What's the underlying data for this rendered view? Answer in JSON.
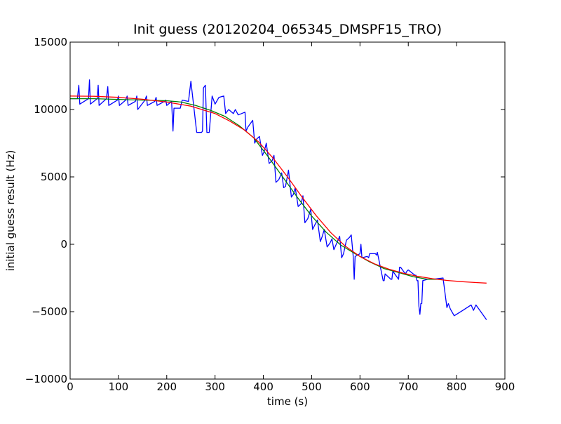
{
  "chart_data": {
    "type": "line",
    "title": "Init guess (20120204_065345_DMSPF15_TRO)",
    "xlabel": "time (s)",
    "ylabel": "initial guess result (Hz)",
    "xlim": [
      0,
      900
    ],
    "ylim": [
      -10000,
      15000
    ],
    "xticks": [
      0,
      100,
      200,
      300,
      400,
      500,
      600,
      700,
      800,
      900
    ],
    "yticks": [
      -10000,
      -5000,
      0,
      5000,
      10000,
      15000
    ],
    "xtick_labels": [
      "0",
      "100",
      "200",
      "300",
      "400",
      "500",
      "600",
      "700",
      "800",
      "900"
    ],
    "ytick_labels": [
      "−10000",
      "−5000",
      "0",
      "5000",
      "10000",
      "15000"
    ],
    "grid": false,
    "legend": "none",
    "series": [
      {
        "color": "#0000ff",
        "x": [
          0,
          15,
          18,
          20,
          38,
          40,
          42,
          56,
          58,
          60,
          75,
          78,
          80,
          98,
          100,
          102,
          115,
          118,
          120,
          135,
          138,
          140,
          155,
          158,
          160,
          175,
          178,
          180,
          195,
          198,
          200,
          210,
          213,
          215,
          228,
          232,
          245,
          250,
          262,
          265,
          272,
          274,
          276,
          280,
          283,
          286,
          288,
          294,
          300,
          308,
          318,
          322,
          328,
          338,
          342,
          348,
          362,
          364,
          368,
          378,
          382,
          386,
          392,
          398,
          402,
          406,
          412,
          418,
          422,
          426,
          432,
          438,
          442,
          446,
          452,
          458,
          462,
          466,
          472,
          478,
          482,
          486,
          492,
          498,
          502,
          506,
          512,
          518,
          522,
          526,
          532,
          538,
          542,
          546,
          552,
          558,
          562,
          566,
          572,
          578,
          582,
          586,
          588,
          590,
          600,
          602,
          604,
          615,
          618,
          620,
          632,
          634,
          636,
          648,
          650,
          652,
          664,
          666,
          668,
          680,
          682,
          684,
          694,
          697,
          700,
          714,
          716,
          718,
          720,
          722,
          724,
          726,
          728,
          730,
          740,
          750,
          772,
          780,
          783,
          787,
          795,
          813,
          830,
          835,
          840,
          850,
          862
        ],
        "y": [
          10800,
          10800,
          11800,
          10400,
          10800,
          12200,
          10400,
          10800,
          11800,
          10300,
          10800,
          11700,
          10300,
          10700,
          11000,
          10300,
          10700,
          11000,
          10300,
          10600,
          11000,
          10000,
          10700,
          11000,
          10300,
          10600,
          10900,
          10300,
          10600,
          10700,
          10300,
          10600,
          8400,
          10100,
          10100,
          10700,
          10600,
          12100,
          8300,
          8300,
          8300,
          8400,
          11600,
          11800,
          8300,
          8300,
          8300,
          11000,
          10400,
          10900,
          11000,
          9700,
          10000,
          9700,
          10000,
          9600,
          9800,
          8400,
          8700,
          9200,
          7500,
          7800,
          8000,
          6600,
          6900,
          7500,
          6000,
          6200,
          6600,
          4600,
          4800,
          5300,
          4200,
          4300,
          5500,
          3500,
          3700,
          4200,
          2800,
          3000,
          3600,
          1600,
          1900,
          2600,
          1100,
          1400,
          1800,
          200,
          600,
          1100,
          -200,
          100,
          400,
          -400,
          100,
          600,
          -1000,
          -700,
          300,
          500,
          700,
          -900,
          -2600,
          -900,
          -700,
          0,
          -1000,
          -900,
          -1000,
          -700,
          -700,
          -800,
          -600,
          -2700,
          -2700,
          -2200,
          -2600,
          -2600,
          -2000,
          -2600,
          -1700,
          -1700,
          -2200,
          -2000,
          -1900,
          -2300,
          -2300,
          -2700,
          -2700,
          -4600,
          -5200,
          -4400,
          -4400,
          -2700,
          -2600,
          -2600,
          -2500,
          -4700,
          -4400,
          -4800,
          -5300,
          -4900,
          -4500,
          -4900,
          -4500,
          -5000,
          -5600
        ]
      },
      {
        "color": "#008000",
        "x": [
          0,
          50,
          100,
          150,
          200,
          230,
          260,
          290,
          320,
          350,
          380,
          410,
          440,
          470,
          500,
          530,
          560,
          590,
          620,
          650,
          680,
          710,
          740,
          770
        ],
        "y": [
          10800,
          10800,
          10750,
          10700,
          10650,
          10550,
          10300,
          9950,
          9500,
          8800,
          7900,
          6500,
          5000,
          3500,
          2100,
          900,
          -50,
          -700,
          -1300,
          -1800,
          -2100,
          -2400,
          -2600,
          -2600
        ]
      },
      {
        "color": "#ff0000",
        "x": [
          0,
          50,
          100,
          150,
          200,
          250,
          300,
          330,
          360,
          390,
          420,
          450,
          480,
          510,
          540,
          570,
          600,
          630,
          660,
          690,
          720,
          750,
          780,
          810,
          840,
          862
        ],
        "y": [
          11000,
          10980,
          10900,
          10760,
          10550,
          10250,
          9700,
          9150,
          8500,
          7600,
          6400,
          5000,
          3500,
          2100,
          850,
          -150,
          -900,
          -1450,
          -1850,
          -2150,
          -2380,
          -2550,
          -2680,
          -2770,
          -2840,
          -2880
        ]
      }
    ]
  }
}
